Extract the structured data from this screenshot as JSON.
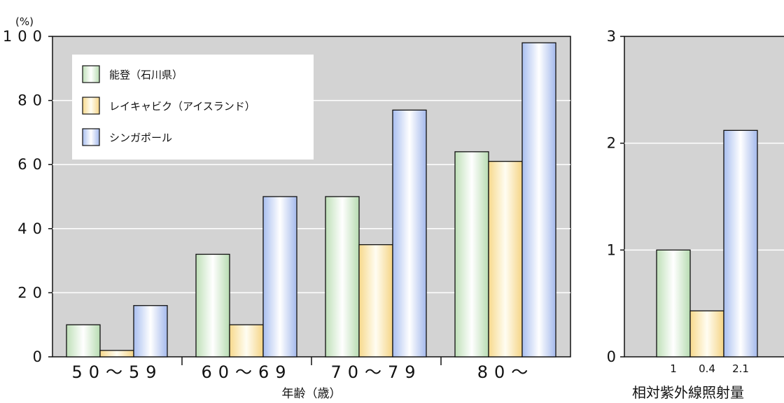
{
  "chart_data": [
    {
      "type": "bar",
      "unit_label": "(%)",
      "xlabel": "年齢（歳）",
      "ylim": [
        0,
        100
      ],
      "yticks": [
        "100",
        "80",
        "60",
        "40",
        "20",
        "0"
      ],
      "categories": [
        "50～59",
        "60～69",
        "70～79",
        "80～"
      ],
      "series": [
        {
          "name": "能登（石川県）",
          "color": "#d8ecd4",
          "values": [
            10,
            32,
            50,
            64
          ]
        },
        {
          "name": "レイキャビク（アイスランド）",
          "color": "#fbe8b8",
          "values": [
            2,
            10,
            35,
            61
          ]
        },
        {
          "name": "シンガポール",
          "color": "#c6d4f2",
          "values": [
            16,
            50,
            77,
            98
          ]
        }
      ],
      "grid": true,
      "legend_position": "top-left"
    },
    {
      "type": "bar",
      "xlabel": "相対紫外線照射量",
      "ylim": [
        0,
        3
      ],
      "yticks": [
        "3",
        "2",
        "1",
        "0"
      ],
      "bar_labels": [
        "1",
        "0.4",
        "2.1"
      ],
      "values": [
        1,
        0.43,
        2.12
      ],
      "colors": [
        "#d8ecd4",
        "#fbe8b8",
        "#c6d4f2"
      ],
      "grid": true
    }
  ]
}
